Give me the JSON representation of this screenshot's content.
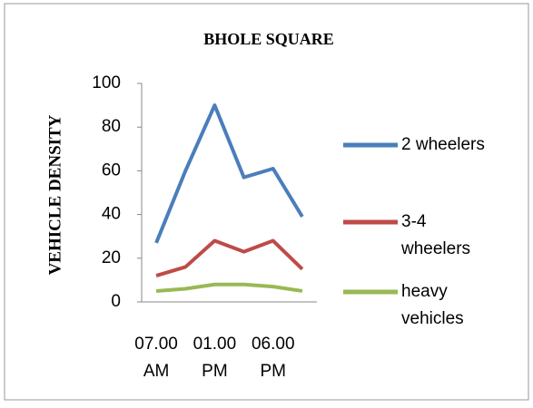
{
  "chart_data": {
    "type": "line",
    "title": "BHOLE SQUARE",
    "y_label": "VEHICLE DENSITY",
    "categories": [
      "07.00 AM",
      null,
      "01.00 PM",
      null,
      "06.00 PM",
      null
    ],
    "series": [
      {
        "name": "2 wheelers",
        "color": "#4a7ebb",
        "values": [
          27,
          60,
          90,
          57,
          61,
          39
        ]
      },
      {
        "name": "3-4 wheelers",
        "color": "#be4b48",
        "values": [
          12,
          16,
          28,
          23,
          28,
          15
        ]
      },
      {
        "name": "heavy vehicles",
        "color": "#98b954",
        "values": [
          5,
          6,
          8,
          8,
          7,
          5
        ]
      }
    ],
    "ylim": [
      0,
      100
    ],
    "yticks": [
      0,
      20,
      40,
      60,
      80,
      100
    ],
    "grid": false,
    "legend": "right"
  }
}
